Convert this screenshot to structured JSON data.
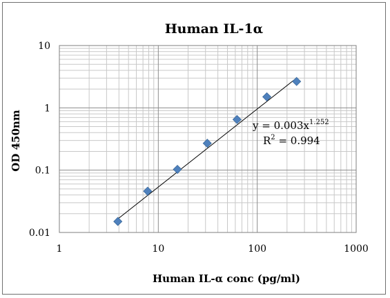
{
  "chart_data": {
    "type": "scatter",
    "title": "Human IL-1α",
    "xlabel": "Human IL-α conc (pg/ml)",
    "ylabel": "OD 450nm",
    "xscale": "log",
    "yscale": "log",
    "xlim": [
      1,
      1000
    ],
    "ylim": [
      0.01,
      10
    ],
    "xticks": [
      "1",
      "10",
      "100",
      "1000"
    ],
    "yticks": [
      "0.01",
      "0.1",
      "1",
      "10"
    ],
    "grid": true,
    "series": [
      {
        "marker": "diamond",
        "color": "#4f81bd",
        "x": [
          3.9,
          7.8,
          15.6,
          31.25,
          62.5,
          125,
          250
        ],
        "y": [
          0.015,
          0.046,
          0.103,
          0.27,
          0.65,
          1.5,
          2.65
        ]
      }
    ],
    "trendline": {
      "type": "power",
      "coefficient": 0.003,
      "exponent": 1.252,
      "x_range": [
        3.9,
        250
      ],
      "color": "#000000"
    },
    "equation": {
      "prefix": "y = 0.003x",
      "exponent": "1.252",
      "r2_label": "R",
      "r2_power": "2",
      "r2_value": " = 0.994"
    }
  }
}
